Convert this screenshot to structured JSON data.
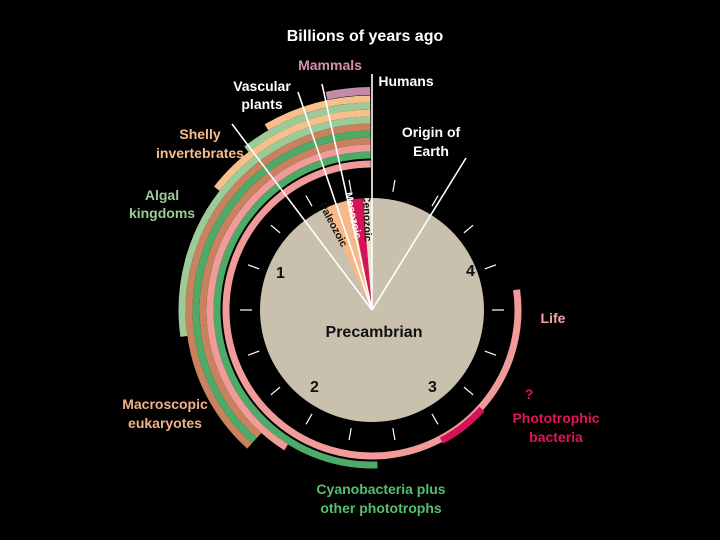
{
  "title": "Billions of years ago",
  "clock_numbers": [
    "1",
    "2",
    "3",
    "4"
  ],
  "center_label": "Precambrian",
  "eras": {
    "paleozoic": "Paleozoic",
    "mesozoic": "Mesozoic",
    "cenozoic": "Cenozoic"
  },
  "labels": {
    "mammals": "Mammals",
    "humans": "Humans",
    "vascular_plants": [
      "Vascular",
      "plants"
    ],
    "origin_of_earth": [
      "Origin of",
      "Earth"
    ],
    "shelly_invertebrates": [
      "Shelly",
      "invertebrates"
    ],
    "algal_kingdoms": [
      "Algal",
      "kingdoms"
    ],
    "life": "Life",
    "question": "?",
    "phototrophic_bacteria": [
      "Phototrophic",
      "bacteria"
    ],
    "macroscopic_eukaryotes": [
      "Macroscopic",
      "eukaryotes"
    ],
    "cyanobacteria": [
      "Cyanobacteria plus",
      "other phototrophs"
    ]
  },
  "colors": {
    "background": "#000000",
    "clock_face": "#c9c1ad",
    "paleozoic": "#f6b98a",
    "mesozoic": "#d4135a",
    "cenozoic": "#e6e0cc",
    "pink_band": "#f19a9a",
    "green_band": "#4dab67",
    "salmon_band": "#c9825f",
    "light_green_band": "#9ccb97",
    "peach_band": "#f6c08d",
    "mauve_band": "#c48aa6",
    "magenta_band": "#d4135a",
    "label_white": "#ffffff",
    "label_mammals": "#d58fb2",
    "label_shelly": "#f7bd8c",
    "label_algal": "#9ccb97",
    "label_macroscopic": "#f0b08a",
    "label_cyano": "#56bf6e",
    "label_life": "#f4a4a4",
    "label_phototrophic": "#e0145a"
  }
}
